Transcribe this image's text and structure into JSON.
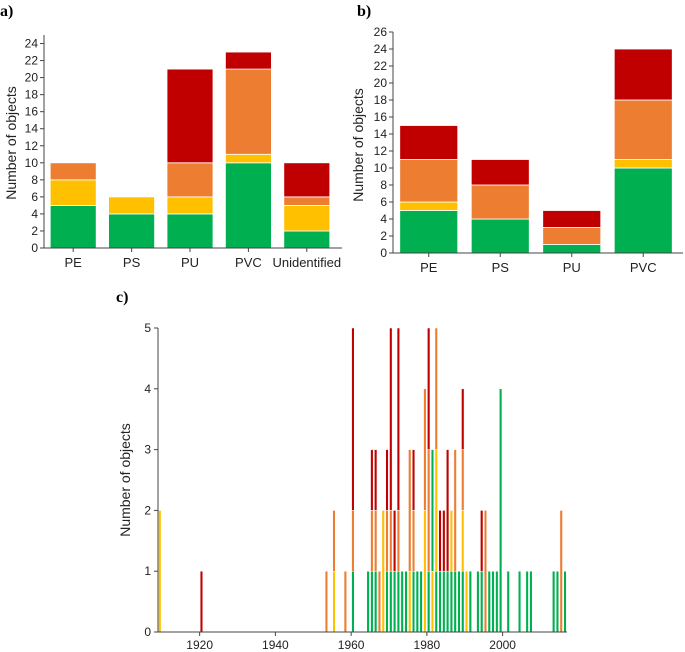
{
  "colors": {
    "green": "#00b050",
    "yellow": "#ffc000",
    "orange": "#ed7d31",
    "red": "#c00000"
  },
  "chart_data": [
    {
      "panel": "a)",
      "type": "bar",
      "stacked": true,
      "ylabel": "Number of objects",
      "ylim": [
        0,
        25
      ],
      "yticks": [
        0,
        2,
        4,
        6,
        8,
        10,
        12,
        14,
        16,
        18,
        20,
        22,
        24
      ],
      "categories": [
        "PE",
        "PS",
        "PU",
        "PVC",
        "Unidentified"
      ],
      "series": [
        {
          "color": "green",
          "values": [
            5,
            4,
            4,
            10,
            2
          ]
        },
        {
          "color": "yellow",
          "values": [
            3,
            2,
            2,
            1,
            3
          ]
        },
        {
          "color": "orange",
          "values": [
            2,
            0,
            4,
            10,
            1
          ]
        },
        {
          "color": "red",
          "values": [
            0,
            0,
            11,
            2,
            4
          ]
        }
      ]
    },
    {
      "panel": "b)",
      "type": "bar",
      "stacked": true,
      "ylabel": "Number of objects",
      "ylim": [
        0,
        26
      ],
      "yticks": [
        0,
        2,
        4,
        6,
        8,
        10,
        12,
        14,
        16,
        18,
        20,
        22,
        24,
        26
      ],
      "categories": [
        "PE",
        "PS",
        "PU",
        "PVC"
      ],
      "series": [
        {
          "color": "green",
          "values": [
            5,
            4,
            1,
            10
          ]
        },
        {
          "color": "yellow",
          "values": [
            1,
            0,
            0,
            1
          ]
        },
        {
          "color": "orange",
          "values": [
            5,
            4,
            2,
            7
          ]
        },
        {
          "color": "red",
          "values": [
            4,
            3,
            2,
            6
          ]
        }
      ]
    },
    {
      "panel": "c)",
      "type": "bar",
      "stacked": true,
      "ylabel": "Number of objects",
      "xlim": [
        1909,
        2017
      ],
      "ylim": [
        0,
        5
      ],
      "yticks": [
        0,
        1,
        2,
        3,
        4,
        5
      ],
      "xticks": [
        1920,
        1940,
        1960,
        1980,
        2000
      ],
      "bars": [
        {
          "x": 1909,
          "segs": [
            [
              "yellow",
              2
            ]
          ]
        },
        {
          "x": 1920,
          "segs": [
            [
              "red",
              1
            ]
          ]
        },
        {
          "x": 1953,
          "segs": [
            [
              "orange",
              1
            ]
          ]
        },
        {
          "x": 1955,
          "segs": [
            [
              "yellow",
              1
            ],
            [
              "orange",
              1
            ]
          ]
        },
        {
          "x": 1958,
          "segs": [
            [
              "orange",
              1
            ]
          ]
        },
        {
          "x": 1960,
          "segs": [
            [
              "green",
              1
            ],
            [
              "orange",
              1
            ],
            [
              "red",
              3
            ]
          ]
        },
        {
          "x": 1964,
          "segs": [
            [
              "green",
              1
            ]
          ]
        },
        {
          "x": 1965,
          "segs": [
            [
              "green",
              1
            ],
            [
              "orange",
              1
            ],
            [
              "red",
              1
            ]
          ]
        },
        {
          "x": 1966,
          "segs": [
            [
              "green",
              1
            ],
            [
              "orange",
              1
            ],
            [
              "red",
              1
            ]
          ]
        },
        {
          "x": 1967,
          "segs": [
            [
              "orange",
              1
            ]
          ]
        },
        {
          "x": 1968,
          "segs": [
            [
              "yellow",
              2
            ]
          ]
        },
        {
          "x": 1969,
          "segs": [
            [
              "green",
              1
            ],
            [
              "orange",
              1
            ],
            [
              "red",
              1
            ]
          ]
        },
        {
          "x": 1970,
          "segs": [
            [
              "green",
              1
            ],
            [
              "orange",
              1
            ],
            [
              "red",
              3
            ]
          ]
        },
        {
          "x": 1971,
          "segs": [
            [
              "green",
              1
            ],
            [
              "red",
              1
            ]
          ]
        },
        {
          "x": 1972,
          "segs": [
            [
              "green",
              1
            ],
            [
              "orange",
              1
            ],
            [
              "red",
              3
            ]
          ]
        },
        {
          "x": 1973,
          "segs": [
            [
              "green",
              1
            ]
          ]
        },
        {
          "x": 1974,
          "segs": [
            [
              "green",
              1
            ]
          ]
        },
        {
          "x": 1975,
          "segs": [
            [
              "yellow",
              1
            ],
            [
              "orange",
              2
            ]
          ]
        },
        {
          "x": 1976,
          "segs": [
            [
              "green",
              1
            ],
            [
              "orange",
              1
            ],
            [
              "red",
              1
            ]
          ]
        },
        {
          "x": 1977,
          "segs": [
            [
              "green",
              1
            ]
          ]
        },
        {
          "x": 1978,
          "segs": [
            [
              "green",
              1
            ]
          ]
        },
        {
          "x": 1979,
          "segs": [
            [
              "yellow",
              2
            ],
            [
              "orange",
              2
            ]
          ]
        },
        {
          "x": 1980,
          "segs": [
            [
              "green",
              1
            ],
            [
              "orange",
              2
            ],
            [
              "red",
              2
            ]
          ]
        },
        {
          "x": 1981,
          "segs": [
            [
              "yellow",
              1
            ],
            [
              "green",
              2
            ]
          ]
        },
        {
          "x": 1982,
          "segs": [
            [
              "green",
              1
            ],
            [
              "yellow",
              2
            ],
            [
              "orange",
              2
            ]
          ]
        },
        {
          "x": 1983,
          "segs": [
            [
              "green",
              1
            ],
            [
              "red",
              1
            ]
          ]
        },
        {
          "x": 1984,
          "segs": [
            [
              "green",
              1
            ],
            [
              "red",
              1
            ]
          ]
        },
        {
          "x": 1985,
          "segs": [
            [
              "green",
              1
            ],
            [
              "red",
              2
            ]
          ]
        },
        {
          "x": 1986,
          "segs": [
            [
              "green",
              1
            ],
            [
              "yellow",
              1
            ]
          ]
        },
        {
          "x": 1987,
          "segs": [
            [
              "green",
              1
            ],
            [
              "orange",
              2
            ]
          ]
        },
        {
          "x": 1988,
          "segs": [
            [
              "green",
              1
            ]
          ]
        },
        {
          "x": 1989,
          "segs": [
            [
              "green",
              1
            ],
            [
              "yellow",
              1
            ],
            [
              "orange",
              1
            ],
            [
              "red",
              1
            ]
          ]
        },
        {
          "x": 1990,
          "segs": [
            [
              "yellow",
              1
            ]
          ]
        },
        {
          "x": 1991,
          "segs": [
            [
              "green",
              1
            ]
          ]
        },
        {
          "x": 1993,
          "segs": [
            [
              "green",
              1
            ]
          ]
        },
        {
          "x": 1994,
          "segs": [
            [
              "green",
              1
            ],
            [
              "red",
              1
            ]
          ]
        },
        {
          "x": 1995,
          "segs": [
            [
              "orange",
              2
            ]
          ]
        },
        {
          "x": 1996,
          "segs": [
            [
              "green",
              1
            ]
          ]
        },
        {
          "x": 1997,
          "segs": [
            [
              "green",
              1
            ]
          ]
        },
        {
          "x": 1998,
          "segs": [
            [
              "green",
              1
            ]
          ]
        },
        {
          "x": 1999,
          "segs": [
            [
              "green",
              4
            ]
          ]
        },
        {
          "x": 2001,
          "segs": [
            [
              "green",
              1
            ]
          ]
        },
        {
          "x": 2004,
          "segs": [
            [
              "green",
              1
            ]
          ]
        },
        {
          "x": 2006,
          "segs": [
            [
              "green",
              1
            ]
          ]
        },
        {
          "x": 2007,
          "segs": [
            [
              "green",
              1
            ]
          ]
        },
        {
          "x": 2013,
          "segs": [
            [
              "green",
              1
            ]
          ]
        },
        {
          "x": 2014,
          "segs": [
            [
              "green",
              1
            ]
          ]
        },
        {
          "x": 2015,
          "segs": [
            [
              "orange",
              2
            ]
          ]
        },
        {
          "x": 2016,
          "segs": [
            [
              "green",
              1
            ]
          ]
        }
      ]
    }
  ]
}
